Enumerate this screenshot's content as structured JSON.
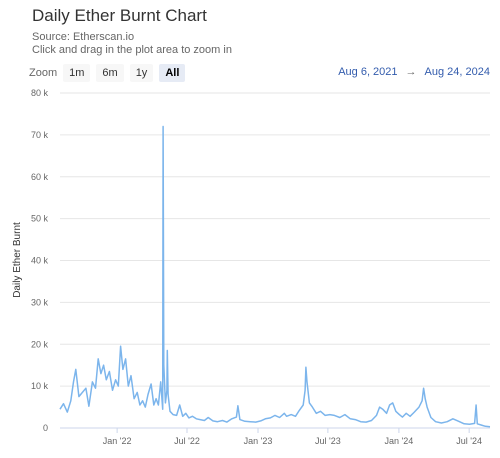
{
  "header": {
    "title": "Daily Ether Burnt Chart",
    "source": "Source: Etherscan.io",
    "hint": "Click and drag in the plot area to zoom in"
  },
  "zoom": {
    "label": "Zoom",
    "buttons": [
      {
        "label": "1m",
        "active": false
      },
      {
        "label": "6m",
        "active": false
      },
      {
        "label": "1y",
        "active": false
      },
      {
        "label": "All",
        "active": true
      }
    ]
  },
  "range": {
    "from": "Aug 6, 2021",
    "arrow": "→",
    "to": "Aug 24, 2024"
  },
  "chart_data": {
    "type": "line",
    "title": "Daily Ether Burnt Chart",
    "ylabel": "Daily Ether Burnt",
    "xlabel": "",
    "ylim": [
      0,
      80000
    ],
    "xlim": [
      "2021-08-06",
      "2024-08-24"
    ],
    "yticks": [
      {
        "value": 0,
        "label": "0"
      },
      {
        "value": 10000,
        "label": "10 k"
      },
      {
        "value": 20000,
        "label": "20 k"
      },
      {
        "value": 30000,
        "label": "30 k"
      },
      {
        "value": 40000,
        "label": "40 k"
      },
      {
        "value": 50000,
        "label": "50 k"
      },
      {
        "value": 60000,
        "label": "60 k"
      },
      {
        "value": 70000,
        "label": "70 k"
      },
      {
        "value": 80000,
        "label": "80 k"
      }
    ],
    "xticks": [
      {
        "date": "2022-01-01",
        "label": "Jan '22"
      },
      {
        "date": "2022-07-01",
        "label": "Jul '22"
      },
      {
        "date": "2023-01-01",
        "label": "Jan '23"
      },
      {
        "date": "2023-07-01",
        "label": "Jul '23"
      },
      {
        "date": "2024-01-01",
        "label": "Jan '24"
      },
      {
        "date": "2024-07-01",
        "label": "Jul '24"
      }
    ],
    "grid": true,
    "line_color": "#7cb5ec",
    "series": [
      {
        "points": [
          [
            "2021-08-06",
            4500
          ],
          [
            "2021-08-15",
            5800
          ],
          [
            "2021-08-25",
            3800
          ],
          [
            "2021-09-03",
            6500
          ],
          [
            "2021-09-10",
            11000
          ],
          [
            "2021-09-16",
            14000
          ],
          [
            "2021-09-24",
            7500
          ],
          [
            "2021-10-03",
            8500
          ],
          [
            "2021-10-12",
            9500
          ],
          [
            "2021-10-20",
            5200
          ],
          [
            "2021-10-29",
            11000
          ],
          [
            "2021-11-06",
            9500
          ],
          [
            "2021-11-13",
            16500
          ],
          [
            "2021-11-20",
            13000
          ],
          [
            "2021-11-27",
            15000
          ],
          [
            "2021-12-04",
            11500
          ],
          [
            "2021-12-12",
            13500
          ],
          [
            "2021-12-20",
            9000
          ],
          [
            "2021-12-28",
            11500
          ],
          [
            "2022-01-04",
            10000
          ],
          [
            "2022-01-10",
            19500
          ],
          [
            "2022-01-16",
            14000
          ],
          [
            "2022-01-23",
            16500
          ],
          [
            "2022-01-30",
            10000
          ],
          [
            "2022-02-06",
            12500
          ],
          [
            "2022-02-14",
            7000
          ],
          [
            "2022-02-22",
            8500
          ],
          [
            "2022-03-01",
            5500
          ],
          [
            "2022-03-08",
            6500
          ],
          [
            "2022-03-15",
            5000
          ],
          [
            "2022-03-22",
            8000
          ],
          [
            "2022-03-30",
            10500
          ],
          [
            "2022-04-06",
            5500
          ],
          [
            "2022-04-12",
            7000
          ],
          [
            "2022-04-18",
            5500
          ],
          [
            "2022-04-24",
            11000
          ],
          [
            "2022-04-29",
            4500
          ],
          [
            "2022-04-30",
            72000
          ],
          [
            "2022-05-02",
            15000
          ],
          [
            "2022-05-06",
            6000
          ],
          [
            "2022-05-10",
            9000
          ],
          [
            "2022-05-11",
            18500
          ],
          [
            "2022-05-13",
            8000
          ],
          [
            "2022-05-18",
            4000
          ],
          [
            "2022-05-26",
            3200
          ],
          [
            "2022-06-04",
            3000
          ],
          [
            "2022-06-12",
            5500
          ],
          [
            "2022-06-20",
            2800
          ],
          [
            "2022-06-28",
            3500
          ],
          [
            "2022-07-06",
            2400
          ],
          [
            "2022-07-15",
            2800
          ],
          [
            "2022-07-25",
            2200
          ],
          [
            "2022-08-04",
            2000
          ],
          [
            "2022-08-15",
            1800
          ],
          [
            "2022-08-25",
            2500
          ],
          [
            "2022-09-06",
            1700
          ],
          [
            "2022-09-18",
            1500
          ],
          [
            "2022-10-01",
            1800
          ],
          [
            "2022-10-12",
            1400
          ],
          [
            "2022-10-25",
            2200
          ],
          [
            "2022-11-06",
            2600
          ],
          [
            "2022-11-10",
            5300
          ],
          [
            "2022-11-15",
            2000
          ],
          [
            "2022-11-28",
            1600
          ],
          [
            "2022-12-12",
            1500
          ],
          [
            "2022-12-26",
            1400
          ],
          [
            "2023-01-08",
            1700
          ],
          [
            "2023-01-20",
            2200
          ],
          [
            "2023-02-02",
            2400
          ],
          [
            "2023-02-14",
            3000
          ],
          [
            "2023-02-26",
            2500
          ],
          [
            "2023-03-10",
            3500
          ],
          [
            "2023-03-16",
            2800
          ],
          [
            "2023-03-28",
            3200
          ],
          [
            "2023-04-08",
            2800
          ],
          [
            "2023-04-18",
            4200
          ],
          [
            "2023-04-28",
            5500
          ],
          [
            "2023-05-03",
            9000
          ],
          [
            "2023-05-05",
            14500
          ],
          [
            "2023-05-08",
            11000
          ],
          [
            "2023-05-14",
            6000
          ],
          [
            "2023-05-22",
            5000
          ],
          [
            "2023-06-01",
            3500
          ],
          [
            "2023-06-12",
            4000
          ],
          [
            "2023-06-24",
            3000
          ],
          [
            "2023-07-06",
            3200
          ],
          [
            "2023-07-18",
            3000
          ],
          [
            "2023-08-01",
            2500
          ],
          [
            "2023-08-14",
            3200
          ],
          [
            "2023-08-28",
            2200
          ],
          [
            "2023-09-10",
            2000
          ],
          [
            "2023-09-24",
            1500
          ],
          [
            "2023-10-08",
            1400
          ],
          [
            "2023-10-22",
            1800
          ],
          [
            "2023-11-04",
            3000
          ],
          [
            "2023-11-12",
            5000
          ],
          [
            "2023-11-20",
            4500
          ],
          [
            "2023-11-30",
            3500
          ],
          [
            "2023-12-08",
            5500
          ],
          [
            "2023-12-16",
            6000
          ],
          [
            "2023-12-24",
            4000
          ],
          [
            "2024-01-02",
            3200
          ],
          [
            "2024-01-10",
            2600
          ],
          [
            "2024-01-20",
            3500
          ],
          [
            "2024-01-30",
            2800
          ],
          [
            "2024-02-10",
            3800
          ],
          [
            "2024-02-22",
            5000
          ],
          [
            "2024-03-01",
            6500
          ],
          [
            "2024-03-05",
            9500
          ],
          [
            "2024-03-09",
            7000
          ],
          [
            "2024-03-14",
            5000
          ],
          [
            "2024-03-24",
            2500
          ],
          [
            "2024-04-05",
            1500
          ],
          [
            "2024-04-20",
            1200
          ],
          [
            "2024-05-05",
            1500
          ],
          [
            "2024-05-20",
            2200
          ],
          [
            "2024-06-04",
            1600
          ],
          [
            "2024-06-18",
            1000
          ],
          [
            "2024-07-02",
            900
          ],
          [
            "2024-07-15",
            1100
          ],
          [
            "2024-07-19",
            5500
          ],
          [
            "2024-07-22",
            1000
          ],
          [
            "2024-08-02",
            700
          ],
          [
            "2024-08-12",
            400
          ],
          [
            "2024-08-24",
            300
          ]
        ]
      }
    ]
  }
}
